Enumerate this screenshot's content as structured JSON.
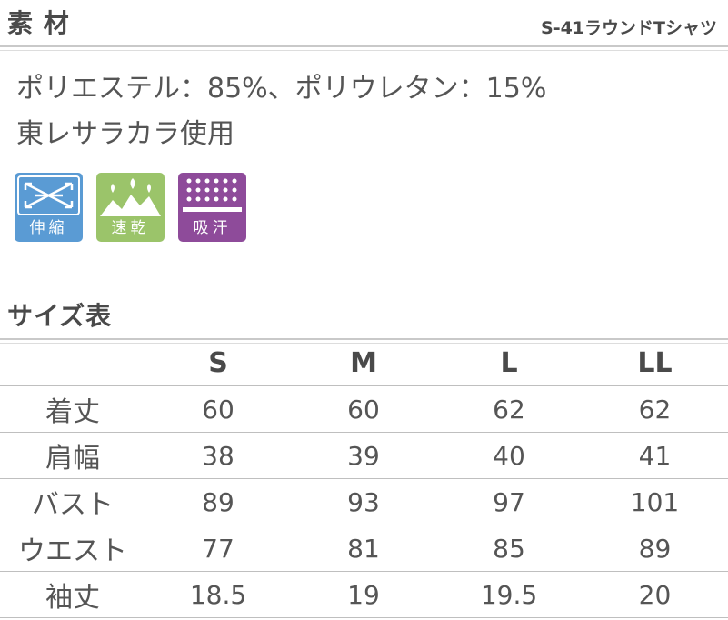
{
  "material_section": {
    "title": "素 材",
    "product": "S-41ラウンドTシャツ",
    "composition": "ポリエステル：85%、ポリウレタン：15%",
    "maker": "東レサラカラ使用",
    "features": [
      {
        "label": "伸縮",
        "icon": "stretch-arrows-icon",
        "color": "#5a9bd4"
      },
      {
        "label": "速乾",
        "icon": "quick-dry-icon",
        "color": "#9bc46a"
      },
      {
        "label": "吸汗",
        "icon": "sweat-absorb-icon",
        "color": "#8e4b9a"
      }
    ]
  },
  "size_section": {
    "title": "サイズ表",
    "columns": [
      "",
      "S",
      "M",
      "L",
      "LL"
    ],
    "rows": [
      {
        "label": "着丈",
        "values": [
          "60",
          "60",
          "62",
          "62"
        ]
      },
      {
        "label": "肩幅",
        "values": [
          "38",
          "39",
          "40",
          "41"
        ]
      },
      {
        "label": "バスト",
        "values": [
          "89",
          "93",
          "97",
          "101"
        ]
      },
      {
        "label": "ウエスト",
        "values": [
          "77",
          "81",
          "85",
          "89"
        ]
      },
      {
        "label": "袖丈",
        "values": [
          "18.5",
          "19",
          "19.5",
          "20"
        ]
      }
    ]
  }
}
